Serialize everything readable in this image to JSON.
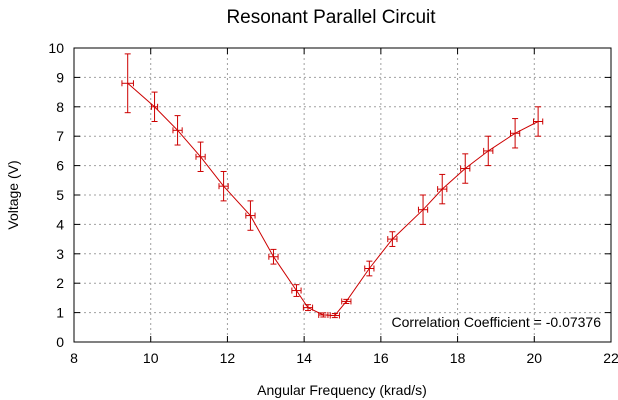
{
  "chart_data": {
    "type": "line",
    "title": "Resonant Parallel Circuit",
    "xlabel": "Angular Frequency (krad/s)",
    "ylabel": "Voltage (V)",
    "xlim": [
      8,
      22
    ],
    "ylim": [
      0,
      10
    ],
    "xticks": [
      8,
      10,
      12,
      14,
      16,
      18,
      20,
      22
    ],
    "yticks": [
      0,
      1,
      2,
      3,
      4,
      5,
      6,
      7,
      8,
      9,
      10
    ],
    "grid": true,
    "color": "#cc0000",
    "annotation": "Correlation Coefficient = -0.07376",
    "series": [
      {
        "x": [
          9.4,
          10.1,
          10.7,
          11.3,
          11.9,
          12.6,
          13.2,
          13.8,
          14.1,
          14.5,
          14.8,
          15.1,
          15.7,
          16.3,
          17.1,
          17.6,
          18.2,
          18.8,
          19.5,
          20.1
        ],
        "y": [
          8.8,
          8.0,
          7.2,
          6.3,
          5.3,
          4.3,
          2.9,
          1.75,
          1.17,
          0.92,
          0.9,
          1.38,
          2.5,
          3.5,
          4.5,
          5.2,
          5.9,
          6.5,
          7.1,
          7.5
        ],
        "yerr": [
          1.0,
          0.5,
          0.5,
          0.5,
          0.5,
          0.5,
          0.25,
          0.2,
          0.1,
          0.07,
          0.07,
          0.07,
          0.25,
          0.25,
          0.5,
          0.5,
          0.5,
          0.5,
          0.5,
          0.5
        ],
        "xerr": [
          0.15,
          0.08,
          0.12,
          0.12,
          0.12,
          0.12,
          0.12,
          0.12,
          0.12,
          0.12,
          0.12,
          0.12,
          0.12,
          0.12,
          0.12,
          0.12,
          0.12,
          0.12,
          0.12,
          0.12
        ]
      }
    ]
  }
}
